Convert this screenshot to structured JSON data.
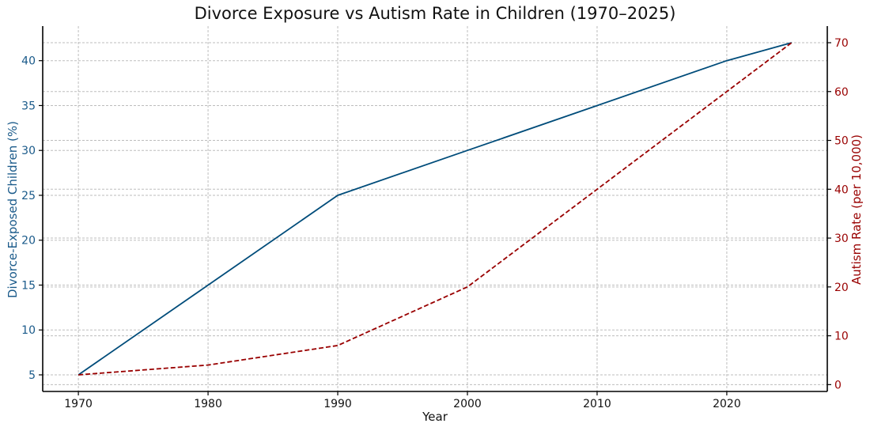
{
  "chart_data": {
    "type": "line",
    "title": "Divorce Exposure vs Autism Rate in Children (1970–2025)",
    "xlabel": "Year",
    "x": [
      1970,
      1980,
      1990,
      2000,
      2010,
      2020,
      2025
    ],
    "xlim": [
      1967.25,
      2027.75
    ],
    "x_ticks": [
      1970,
      1980,
      1990,
      2000,
      2010,
      2020
    ],
    "grid": true,
    "series": [
      {
        "name": "Divorce-Exposed Children (%)",
        "axis": "left",
        "color": "#004c7a",
        "style": "solid",
        "values": [
          5,
          15,
          25,
          30,
          35,
          40,
          42
        ]
      },
      {
        "name": "Autism Rate (per 10,000)",
        "axis": "right",
        "color": "#990000",
        "style": "dashed",
        "values": [
          2,
          4,
          8,
          20,
          40,
          60,
          70
        ]
      }
    ],
    "left_axis": {
      "label": "Divorce-Exposed Children (%)",
      "color": "#1a5a8a",
      "ylim": [
        3.15,
        43.85
      ],
      "ticks": [
        5,
        10,
        15,
        20,
        25,
        30,
        35,
        40
      ]
    },
    "right_axis": {
      "label": "Autism Rate (per 10,000)",
      "color": "#990000",
      "ylim": [
        -1.4,
        73.4
      ],
      "ticks": [
        0,
        10,
        20,
        30,
        40,
        50,
        60,
        70
      ]
    }
  }
}
